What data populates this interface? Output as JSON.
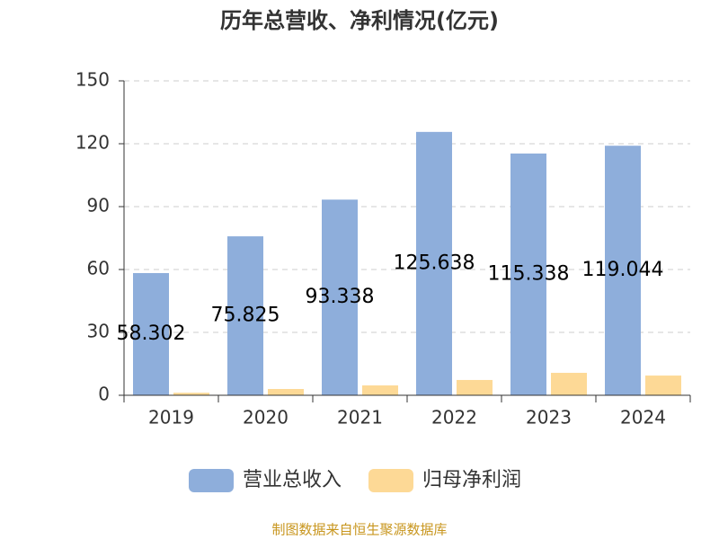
{
  "chart_data": {
    "type": "bar",
    "title": "历年总营收、净利情况(亿元)",
    "categories": [
      "2019",
      "2020",
      "2021",
      "2022",
      "2023",
      "2024"
    ],
    "series": [
      {
        "name": "营业总收入",
        "color": "#8eaedb",
        "values": [
          58.302,
          75.825,
          93.338,
          125.638,
          115.338,
          119.044
        ]
      },
      {
        "name": "归母净利润",
        "color": "#fdd996",
        "values": [
          1.2,
          3.0,
          4.7,
          7.3,
          10.7,
          9.4
        ]
      }
    ],
    "ylim": [
      0,
      150
    ],
    "yticks": [
      0,
      30,
      60,
      90,
      120,
      150
    ],
    "grid": true,
    "source": "制图数据来自恒生聚源数据库"
  }
}
